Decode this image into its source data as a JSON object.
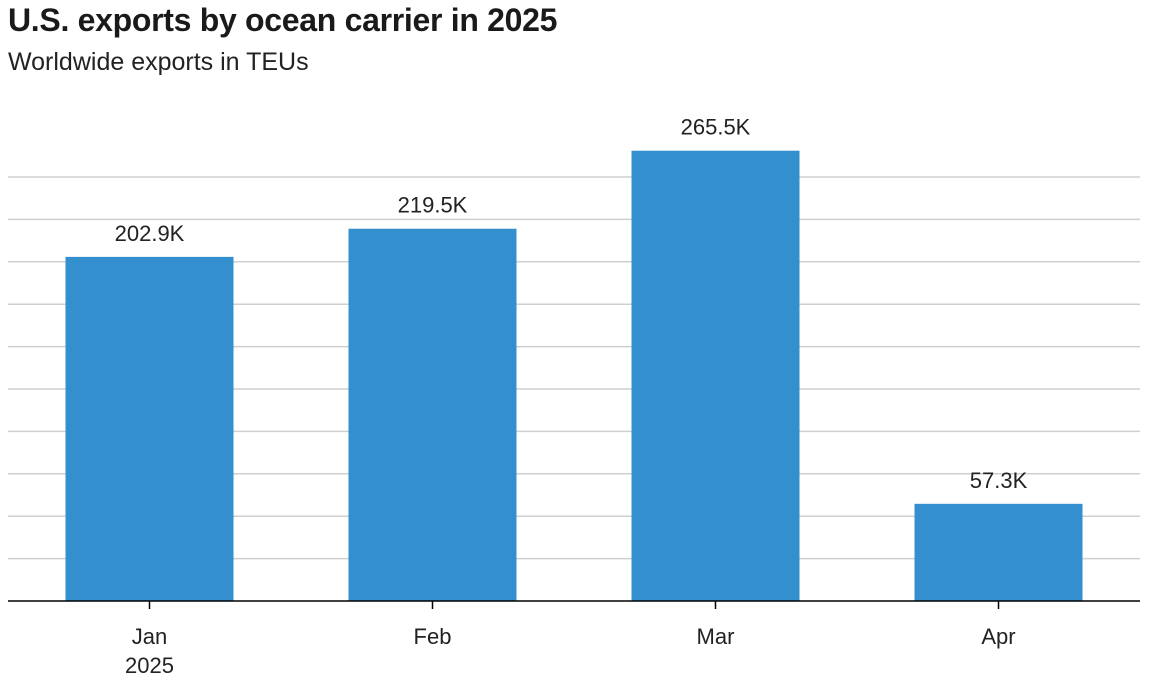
{
  "chart_data": {
    "type": "bar",
    "title": "U.S. exports by ocean carrier in 2025",
    "subtitle": "Worldwide exports in TEUs",
    "categories": [
      "Jan",
      "Feb",
      "Mar",
      "Apr"
    ],
    "category_sublabels": [
      "2025",
      "",
      "",
      ""
    ],
    "values": [
      202.9,
      219.5,
      265.5,
      57.3
    ],
    "value_labels": [
      "202.9K",
      "219.5K",
      "265.5K",
      "57.3K"
    ],
    "value_unit": "K TEUs",
    "ylim": [
      0,
      250
    ],
    "grid": true,
    "bar_color": "#348fce",
    "xlabel": "",
    "ylabel": ""
  }
}
